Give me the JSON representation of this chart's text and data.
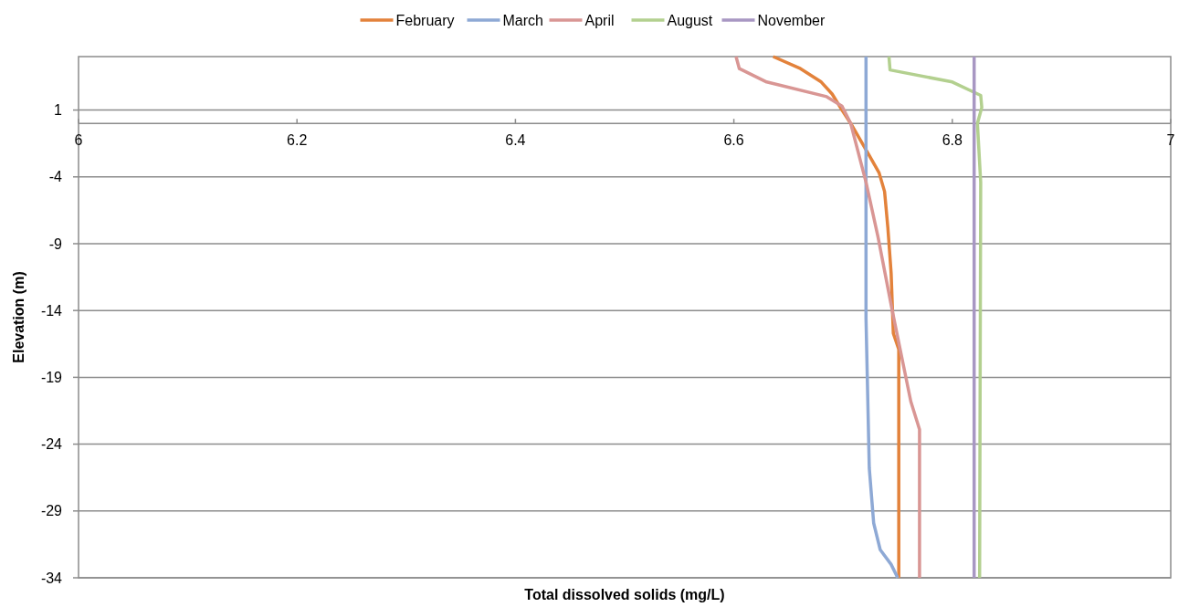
{
  "chart_data": {
    "type": "line",
    "xlabel": "Total dissolved solids (mg/L)",
    "ylabel": "Elevation (m)",
    "xlim": [
      6,
      7
    ],
    "xticks": [
      6,
      6.2,
      6.4,
      6.6,
      6.8,
      7
    ],
    "ylim": [
      -34,
      5
    ],
    "yticks": [
      1,
      -4,
      -9,
      -14,
      -19,
      -24,
      -29,
      -34
    ],
    "grid": "y",
    "legend": "top",
    "marker": "none",
    "line_style": "solid",
    "series": [
      {
        "name": "February",
        "color": "#e3823b",
        "x": [
          6.636,
          6.661,
          6.68,
          6.69,
          6.699,
          6.707,
          6.724,
          6.733,
          6.738,
          6.741,
          6.744,
          6.746,
          6.751,
          6.751
        ],
        "values": [
          5,
          4.1,
          3.1,
          2.2,
          1,
          0,
          -2.4,
          -3.7,
          -5.1,
          -7.8,
          -11.2,
          -15.7,
          -16.9,
          -34
        ]
      },
      {
        "name": "March",
        "color": "#8ea9d5",
        "x": [
          6.721,
          6.721,
          6.724,
          6.728,
          6.734,
          6.744,
          6.75
        ],
        "values": [
          5,
          -14.6,
          -25.8,
          -29.9,
          -31.9,
          -33,
          -34
        ]
      },
      {
        "name": "April",
        "color": "#d99694",
        "x": [
          6.602,
          6.605,
          6.63,
          6.685,
          6.699,
          6.707,
          6.721,
          6.732,
          6.745,
          6.762,
          6.77,
          6.77
        ],
        "values": [
          5,
          4.1,
          3.1,
          2,
          1.3,
          0,
          -4.4,
          -8.5,
          -14,
          -20.8,
          -22.9,
          -34
        ]
      },
      {
        "name": "August",
        "color": "#b3d08f",
        "x": [
          6.742,
          6.743,
          6.8,
          6.826,
          6.827,
          6.823,
          6.826,
          6.825
        ],
        "values": [
          5,
          4,
          3.1,
          2.1,
          1.2,
          0,
          -4.4,
          -34
        ]
      },
      {
        "name": "November",
        "color": "#a897c3",
        "x": [
          6.82,
          6.82
        ],
        "values": [
          5,
          -34
        ]
      }
    ]
  }
}
